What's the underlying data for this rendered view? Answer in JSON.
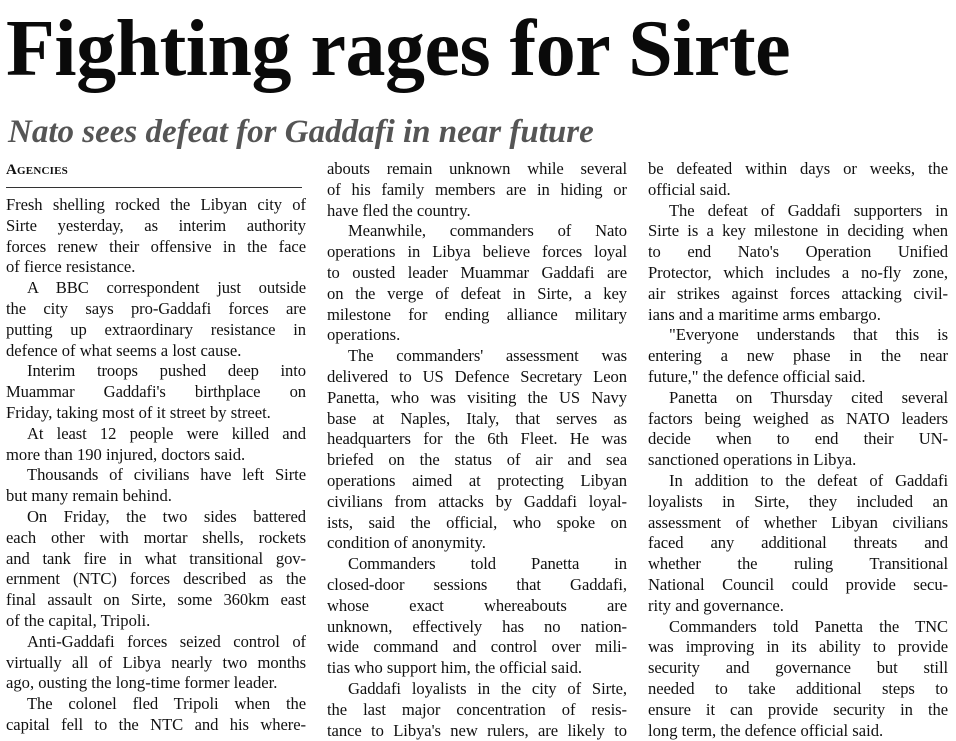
{
  "headline": "Fighting rages for Sirte",
  "subheadline": "Nato sees defeat for Gaddafi in near future",
  "byline": "Agencies",
  "columns": [
    [
      {
        "first": false,
        "lines": [
          "Fresh shelling rocked the Libyan city of",
          "Sirte yesterday, as interim authority",
          "forces renew their offensive in the face",
          "of fierce resistance."
        ]
      },
      {
        "first": true,
        "lines": [
          "A BBC correspondent just outside",
          "the city says pro-Gaddafi forces are",
          "putting up extraordinary resistance in",
          "defence of what seems a lost cause."
        ]
      },
      {
        "first": true,
        "lines": [
          "Interim troops pushed deep into",
          "Muammar Gaddafi's birthplace on",
          "Friday, taking most of it street by street."
        ]
      },
      {
        "first": true,
        "lines": [
          "At least 12 people were killed and",
          "more than 190 injured, doctors said."
        ]
      },
      {
        "first": true,
        "lines": [
          "Thousands of civilians have left Sirte",
          "but many remain behind."
        ]
      },
      {
        "first": true,
        "lines": [
          "On Friday, the two sides battered",
          "each other with mortar shells, rockets",
          "and tank fire in what transitional gov-",
          "ernment (NTC) forces described as the",
          "final assault on Sirte, some 360km east",
          "of the capital, Tripoli."
        ]
      },
      {
        "first": true,
        "lines": [
          "Anti-Gaddafi forces seized control of",
          "virtually all of Libya nearly two months",
          "ago, ousting the long-time former leader."
        ]
      },
      {
        "first": true,
        "cont": true,
        "lines": [
          "The colonel fled Tripoli when the",
          "capital fell to the NTC and his where-"
        ]
      }
    ],
    [
      {
        "first": false,
        "lines": [
          "abouts remain unknown while several",
          "of his family members are in hiding or",
          "have fled the country."
        ]
      },
      {
        "first": true,
        "lines": [
          "Meanwhile, commanders of Nato",
          "operations in Libya believe forces loyal",
          "to ousted leader Muammar Gaddafi are",
          "on the verge of defeat in Sirte, a key",
          "milestone for ending alliance military",
          "operations."
        ]
      },
      {
        "first": true,
        "lines": [
          "The commanders' assessment was",
          "delivered to US Defence Secretary Leon",
          "Panetta, who was visiting the US Navy",
          "base at Naples, Italy, that serves as",
          "headquarters for the 6th Fleet. He was",
          "briefed on the status of air and sea",
          "operations aimed at protecting Libyan",
          "civilians from attacks by Gaddafi loyal-",
          "ists, said the official, who spoke on",
          "condition of anonymity."
        ]
      },
      {
        "first": true,
        "lines": [
          "Commanders told Panetta in",
          "closed-door sessions that Gaddafi,",
          "whose exact whereabouts are",
          "unknown, effectively has no nation-",
          "wide command and control over mili-",
          "tias who support him, the official said."
        ]
      },
      {
        "first": true,
        "cont": true,
        "lines": [
          "Gaddafi loyalists in the city of Sirte,",
          "the last major concentration of resis-",
          "tance to Libya's new rulers, are likely to"
        ]
      }
    ],
    [
      {
        "first": false,
        "lines": [
          "be defeated within days or weeks, the",
          "official said."
        ]
      },
      {
        "first": true,
        "lines": [
          "The defeat of Gaddafi supporters in",
          "Sirte is a key milestone in deciding when",
          "to end Nato's Operation Unified",
          "Protector, which includes a no-fly zone,",
          "air strikes against forces attacking civil-",
          "ians and a maritime arms embargo."
        ]
      },
      {
        "first": true,
        "lines": [
          "\"Everyone understands that this is",
          "entering a new phase in the near",
          "future,\" the defence official said."
        ]
      },
      {
        "first": true,
        "lines": [
          "Panetta on Thursday cited several",
          "factors being weighed as NATO leaders",
          "decide when to end their UN-",
          "sanctioned operations in Libya."
        ]
      },
      {
        "first": true,
        "lines": [
          "In addition to the defeat of Gaddafi",
          "loyalists in Sirte, they included an",
          "assessment of whether Libyan civilians",
          "faced any additional threats and",
          "whether the ruling Transitional",
          "National Council could provide secu-",
          "rity and governance."
        ]
      },
      {
        "first": true,
        "lines": [
          "Commanders told Panetta the TNC",
          "was improving in its ability to provide",
          "security and governance but still",
          "needed to take additional steps to",
          "ensure it can provide security in the",
          "long term, the defence official said."
        ]
      }
    ]
  ]
}
